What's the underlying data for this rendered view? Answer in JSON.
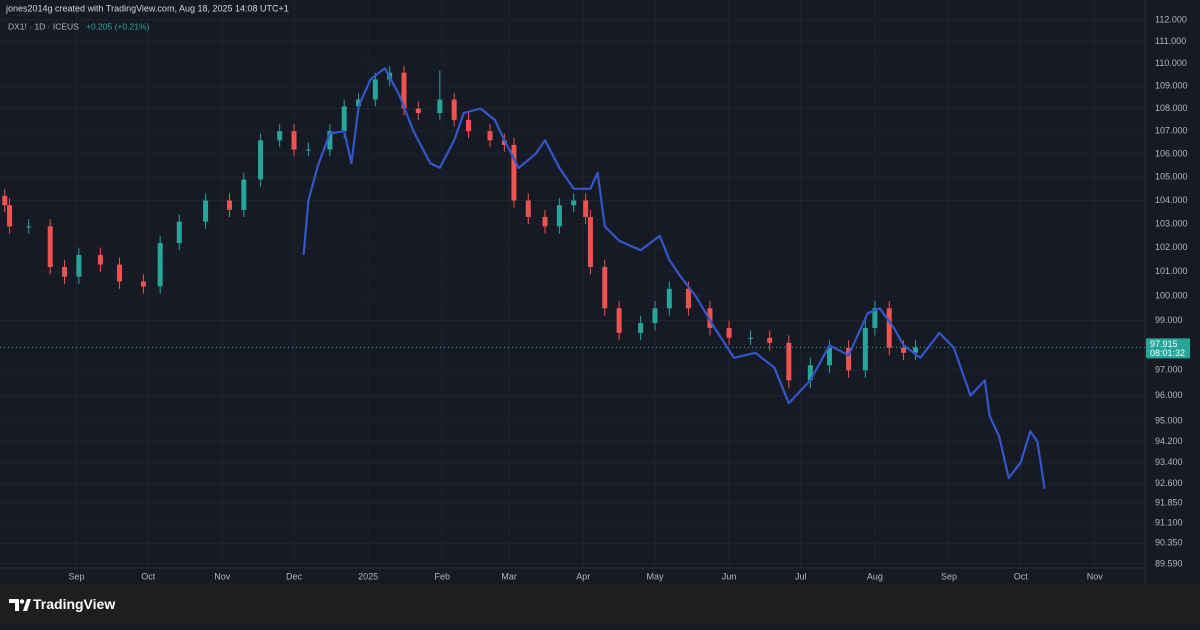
{
  "header": "jones2014g created with TradingView.com, Aug 18, 2025 14:08 UTC+1",
  "brand": "TradingView",
  "chart_data": {
    "type": "candlestick",
    "title": "DX1! · 1D · ICEUS",
    "change_label": "+0.205 (+0.21%)",
    "countdown": "08:01:32",
    "log_scale": true,
    "grid": true,
    "ylim": [
      89.44,
      112.92
    ],
    "yticks": [
      {
        "value": 112,
        "label": "112.000"
      },
      {
        "value": 111,
        "label": "111.000"
      },
      {
        "value": 110,
        "label": "110.000"
      },
      {
        "value": 109,
        "label": "109.000"
      },
      {
        "value": 108,
        "label": "108.000"
      },
      {
        "value": 107,
        "label": "107.000"
      },
      {
        "value": 106,
        "label": "106.000"
      },
      {
        "value": 105,
        "label": "105.000"
      },
      {
        "value": 104,
        "label": "104.000"
      },
      {
        "value": 103,
        "label": "103.000"
      },
      {
        "value": 102,
        "label": "102.000"
      },
      {
        "value": 101,
        "label": "101.000"
      },
      {
        "value": 100,
        "label": "100.000"
      },
      {
        "value": 99,
        "label": "99.000"
      },
      {
        "value": 97,
        "label": "97.000"
      },
      {
        "value": 96,
        "label": "96.000"
      },
      {
        "value": 95,
        "label": "95.000"
      },
      {
        "value": 94.2,
        "label": "94.200"
      },
      {
        "value": 93.4,
        "label": "93.400"
      },
      {
        "value": 92.6,
        "label": "92.600"
      },
      {
        "value": 91.85,
        "label": "91.850"
      },
      {
        "value": 91.1,
        "label": "91.100"
      },
      {
        "value": 90.35,
        "label": "90.350"
      },
      {
        "value": 89.59,
        "label": "89.590"
      }
    ],
    "xlim": [
      -1,
      478
    ],
    "xticks": [
      {
        "value": 31,
        "label": "Sep"
      },
      {
        "value": 61,
        "label": "Oct"
      },
      {
        "value": 92,
        "label": "Nov"
      },
      {
        "value": 122,
        "label": "Dec"
      },
      {
        "value": 153,
        "label": "2025"
      },
      {
        "value": 184,
        "label": "Feb"
      },
      {
        "value": 212,
        "label": "Mar"
      },
      {
        "value": 243,
        "label": "Apr"
      },
      {
        "value": 273,
        "label": "May"
      },
      {
        "value": 304,
        "label": "Jun"
      },
      {
        "value": 334,
        "label": "Jul"
      },
      {
        "value": 365,
        "label": "Aug"
      },
      {
        "value": 396,
        "label": "Sep"
      },
      {
        "value": 426,
        "label": "Oct"
      },
      {
        "value": 457,
        "label": "Nov"
      }
    ],
    "series": [
      {
        "type": "candlestick",
        "color_up": "#26a69a",
        "color_down": "#ef5350",
        "x": [
          1,
          3,
          11,
          20,
          26,
          32,
          41,
          49,
          59,
          66,
          74,
          85,
          95,
          101,
          108,
          116,
          122,
          128,
          137,
          143,
          149,
          156,
          162,
          168,
          174,
          183,
          189,
          195,
          204,
          210,
          214,
          220,
          227,
          233,
          239,
          244,
          246,
          252,
          258,
          267,
          273,
          279,
          287,
          296,
          304,
          313,
          321,
          329,
          338,
          346,
          354,
          361,
          365,
          371,
          377,
          382
        ],
        "open": [
          104.2,
          103.8,
          102.9,
          102.9,
          101.2,
          100.8,
          101.7,
          101.3,
          100.6,
          100.4,
          102.2,
          103.1,
          104.0,
          103.6,
          104.9,
          106.6,
          107.0,
          106.2,
          106.2,
          107.0,
          108.1,
          108.4,
          109.3,
          109.6,
          108.0,
          107.8,
          108.4,
          107.5,
          107.0,
          106.6,
          106.4,
          104.0,
          103.3,
          102.9,
          103.8,
          104.0,
          103.3,
          101.2,
          99.5,
          98.5,
          98.9,
          99.5,
          100.3,
          99.5,
          98.7,
          98.3,
          98.3,
          98.1,
          96.6,
          97.2,
          97.9,
          97.0,
          98.7,
          99.5,
          97.9,
          97.7
        ],
        "high": [
          104.5,
          104.1,
          103.2,
          103.2,
          101.5,
          102.0,
          102.0,
          101.6,
          100.9,
          102.5,
          103.4,
          104.3,
          104.3,
          105.2,
          106.9,
          107.3,
          107.3,
          106.5,
          107.3,
          108.4,
          108.7,
          109.6,
          109.9,
          109.9,
          108.3,
          109.7,
          108.7,
          107.8,
          107.3,
          106.9,
          106.7,
          104.3,
          103.6,
          104.1,
          104.3,
          104.3,
          103.6,
          101.5,
          99.8,
          99.2,
          99.8,
          100.6,
          100.6,
          99.8,
          99.0,
          98.6,
          98.6,
          98.4,
          97.5,
          98.2,
          98.2,
          99.0,
          99.8,
          99.8,
          98.2,
          98.2
        ],
        "low": [
          103.5,
          102.6,
          102.6,
          100.9,
          100.5,
          100.5,
          101.0,
          100.3,
          100.1,
          100.1,
          101.9,
          102.8,
          103.3,
          103.3,
          104.6,
          106.3,
          105.9,
          105.9,
          105.9,
          106.7,
          107.8,
          108.1,
          109.0,
          107.7,
          107.5,
          107.5,
          107.2,
          106.7,
          106.3,
          106.1,
          103.7,
          103.0,
          102.6,
          102.6,
          103.5,
          103.0,
          100.9,
          99.2,
          98.2,
          98.2,
          98.6,
          99.2,
          99.2,
          98.4,
          98.0,
          98.0,
          97.8,
          96.3,
          96.3,
          96.9,
          96.7,
          96.7,
          98.4,
          97.6,
          97.4,
          97.4
        ],
        "close": [
          103.8,
          102.9,
          102.9,
          101.2,
          100.8,
          101.7,
          101.3,
          100.6,
          100.4,
          102.2,
          103.1,
          104.0,
          103.6,
          104.9,
          106.6,
          107.0,
          106.2,
          106.2,
          107.0,
          108.1,
          108.4,
          109.3,
          109.6,
          108.0,
          107.8,
          108.4,
          107.5,
          107.0,
          106.6,
          106.4,
          104.0,
          103.3,
          102.9,
          103.8,
          104.0,
          103.3,
          101.2,
          99.5,
          98.5,
          98.9,
          99.5,
          100.3,
          99.5,
          98.7,
          98.3,
          98.3,
          98.1,
          96.6,
          97.2,
          97.9,
          97.0,
          98.7,
          99.5,
          97.9,
          97.7,
          97.915
        ]
      },
      {
        "type": "line",
        "color": "#3556c8",
        "x": [
          126,
          128,
          132,
          137,
          143,
          146,
          149,
          154,
          160,
          166,
          172,
          179,
          183,
          189,
          193,
          200,
          206,
          210,
          216,
          223,
          227,
          233,
          239,
          246,
          249,
          252,
          258,
          267,
          275,
          279,
          283,
          290,
          298,
          306,
          315,
          323,
          329,
          338,
          346,
          354,
          362,
          367,
          373,
          377,
          384,
          392,
          398,
          405,
          411,
          413,
          417,
          421,
          426,
          430,
          433,
          436
        ],
        "values": [
          101.7,
          104.0,
          105.5,
          106.9,
          107.0,
          105.6,
          108.1,
          109.3,
          109.8,
          108.6,
          107.0,
          105.6,
          105.4,
          106.6,
          107.8,
          108.0,
          107.5,
          106.6,
          105.4,
          106.0,
          106.6,
          105.4,
          104.5,
          104.5,
          105.2,
          102.9,
          102.3,
          101.9,
          102.5,
          101.5,
          100.9,
          100.0,
          98.7,
          97.5,
          97.7,
          97.1,
          95.7,
          96.6,
          98.0,
          97.6,
          99.3,
          99.5,
          98.7,
          98.0,
          97.5,
          98.5,
          97.9,
          96.0,
          96.6,
          95.2,
          94.4,
          92.8,
          93.4,
          94.6,
          94.2,
          92.4
        ]
      }
    ]
  }
}
